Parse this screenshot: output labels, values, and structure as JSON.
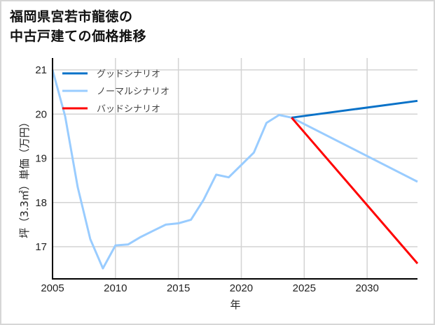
{
  "title": {
    "line1": "福岡県宮若市龍徳の",
    "line2": "中古戸建ての価格推移"
  },
  "chart_data": {
    "type": "line",
    "title": "福岡県宮若市龍徳の中古戸建ての価格推移",
    "xlabel": "年",
    "ylabel": "坪（3.3㎡）単価（万円）",
    "xlim": [
      2005,
      2034
    ],
    "ylim": [
      16.3,
      21.27
    ],
    "x_ticks": [
      2005,
      2010,
      2015,
      2020,
      2025,
      2030
    ],
    "y_ticks": [
      17,
      18,
      19,
      20,
      21
    ],
    "grid": true,
    "legend_position": "upper left",
    "series": [
      {
        "name": "グッドシナリオ",
        "color": "#0a72c8",
        "x": [
          2024,
          2034
        ],
        "values": [
          19.92,
          20.3
        ]
      },
      {
        "name": "ノーマルシナリオ",
        "color": "#99ccff",
        "x": [
          2005,
          2006,
          2007,
          2008,
          2009,
          2010,
          2011,
          2012,
          2013,
          2014,
          2015,
          2016,
          2017,
          2018,
          2019,
          2020,
          2021,
          2022,
          2023,
          2024,
          2034
        ],
        "values": [
          21.0,
          19.95,
          18.35,
          17.17,
          16.51,
          17.03,
          17.05,
          17.22,
          17.36,
          17.5,
          17.53,
          17.61,
          18.06,
          18.63,
          18.57,
          18.85,
          19.13,
          19.8,
          19.98,
          19.92,
          18.47
        ]
      },
      {
        "name": "バッドシナリオ",
        "color": "#ff0000",
        "x": [
          2024,
          2034
        ],
        "values": [
          19.92,
          16.62
        ]
      }
    ]
  },
  "axis_labels": {
    "x": "年",
    "y": "坪（3.3㎡）単価（万円）"
  },
  "legend": [
    {
      "label": "グッドシナリオ",
      "color": "#0a72c8"
    },
    {
      "label": "ノーマルシナリオ",
      "color": "#99ccff"
    },
    {
      "label": "バッドシナリオ",
      "color": "#ff0000"
    }
  ],
  "colors": {
    "grid": "#d3d3d3",
    "axis": "#000000",
    "frame": "#d6d6d6"
  }
}
